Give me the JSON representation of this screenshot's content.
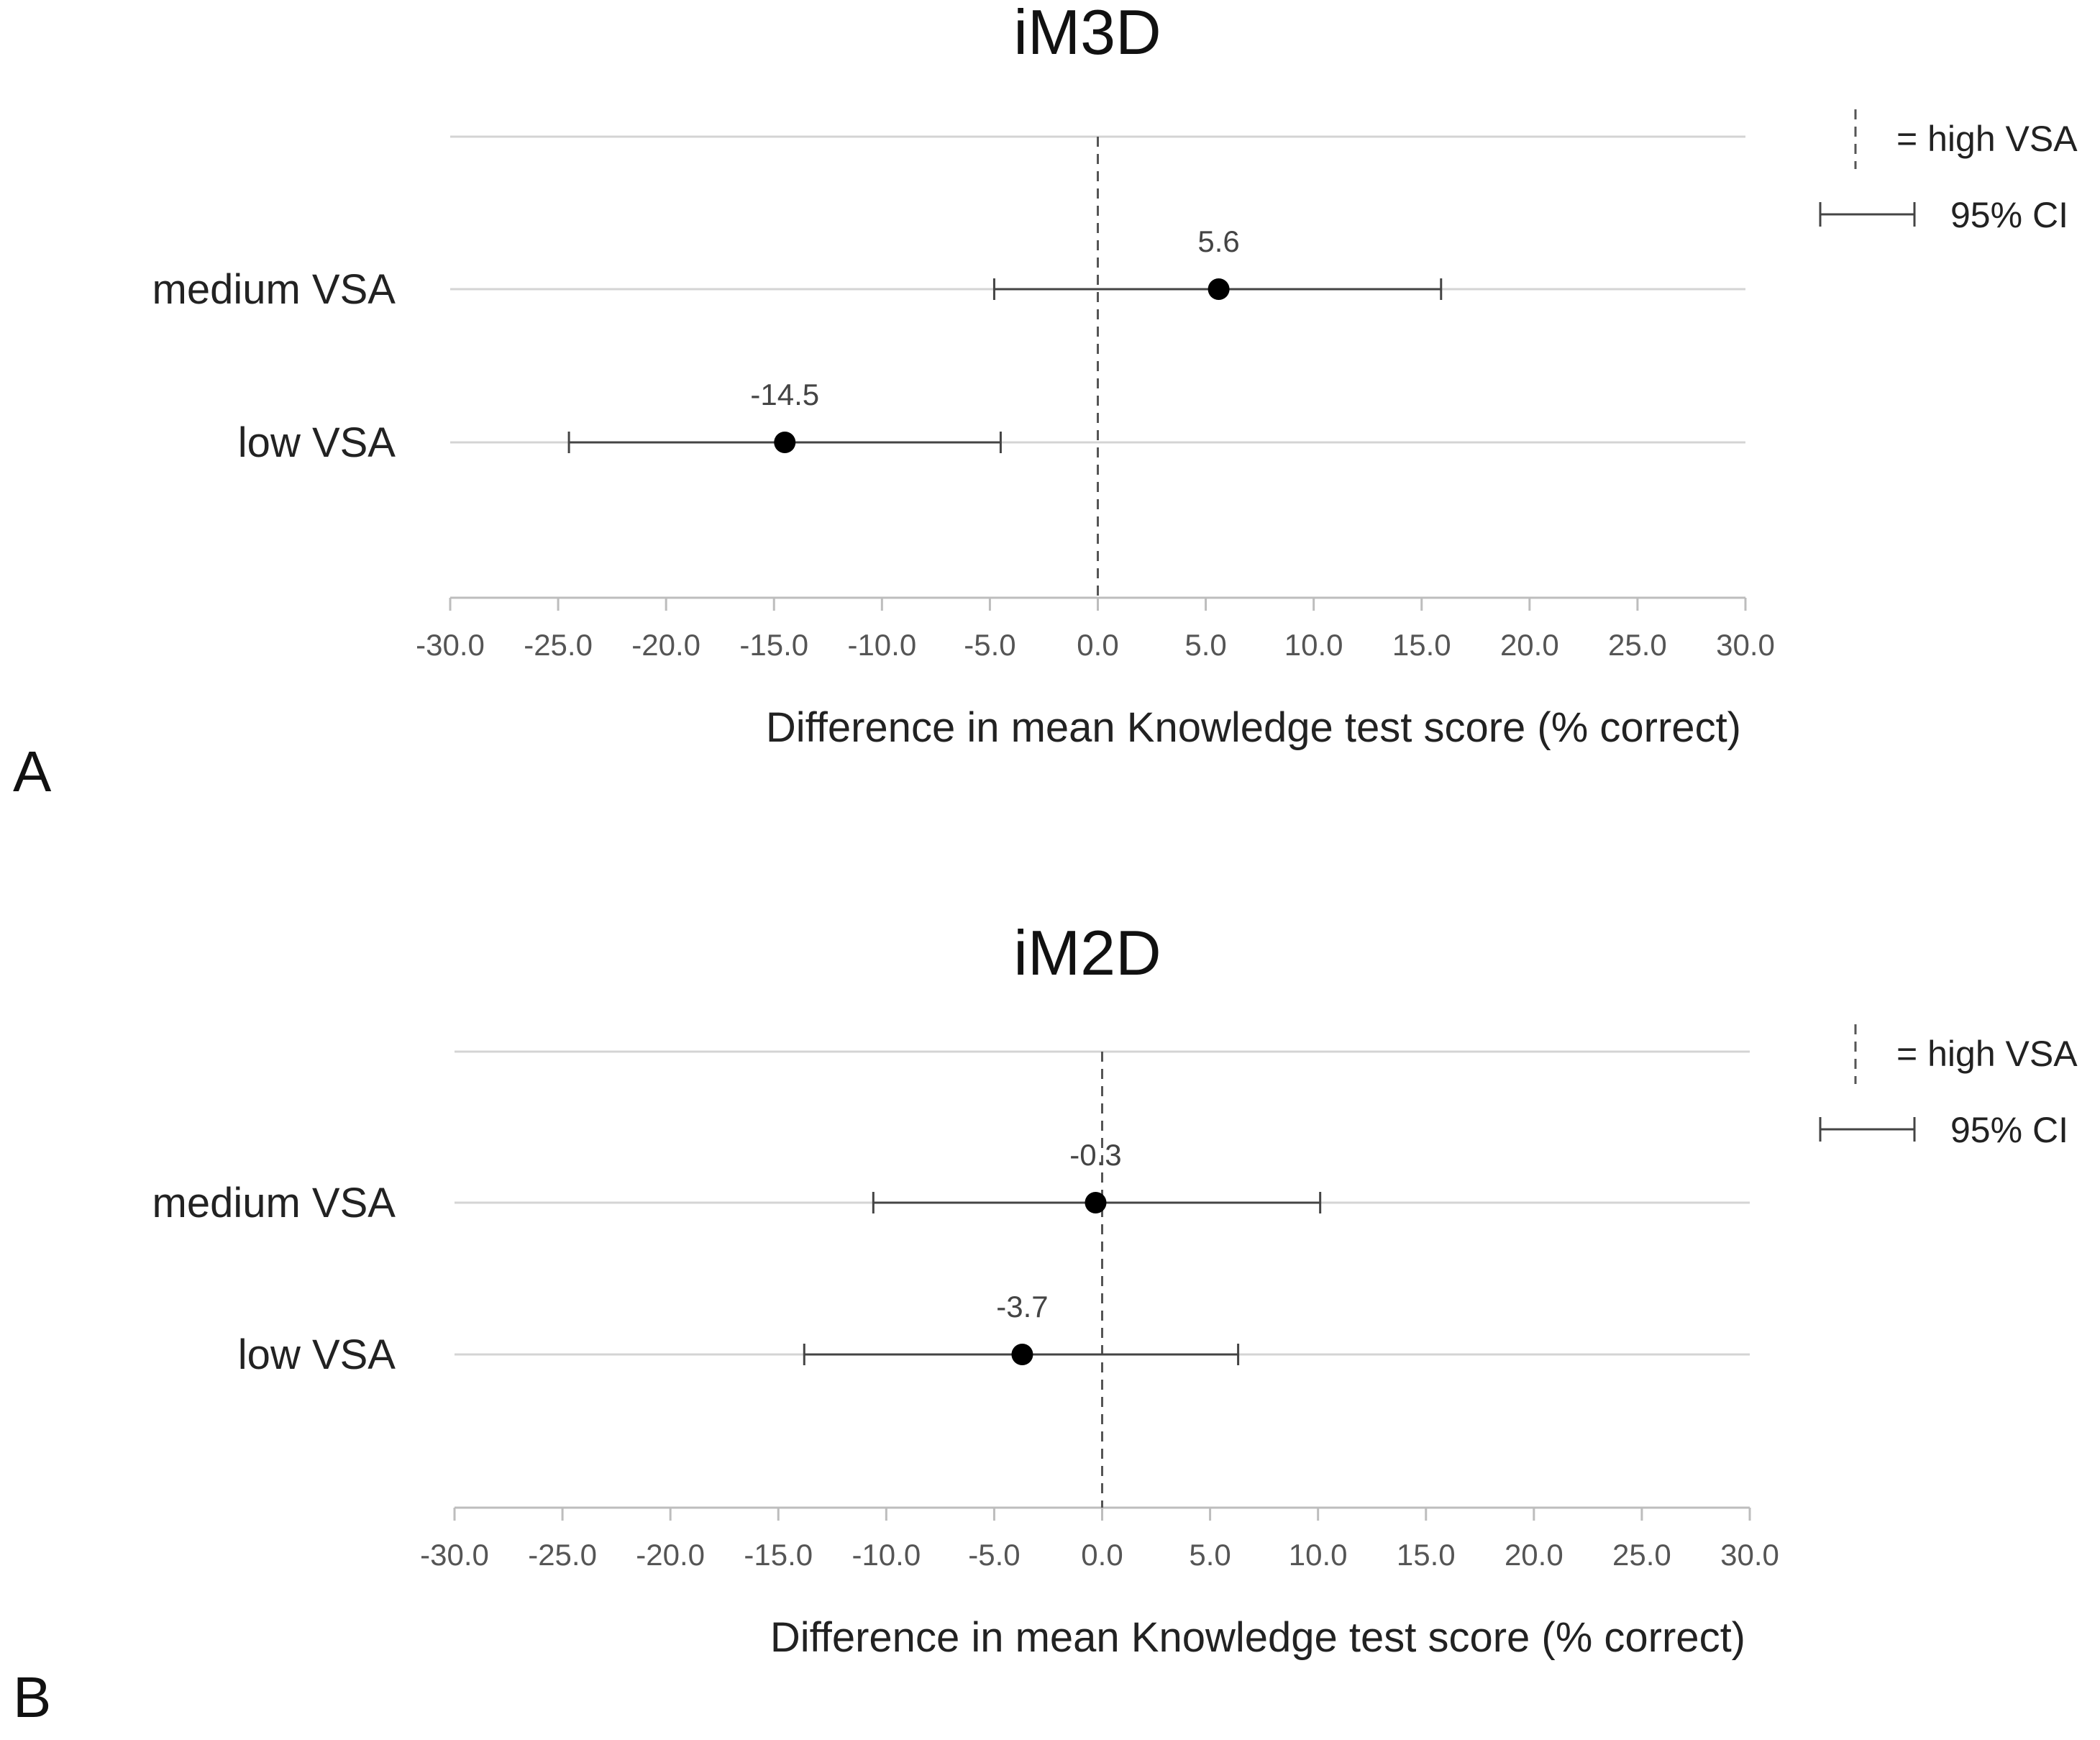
{
  "legend": {
    "reference_label": "= high VSA",
    "ci_label": "95% CI"
  },
  "chart_data": [
    {
      "type": "scatter",
      "panel": "A",
      "title": "iM3D",
      "xlabel": "Difference in mean Knowledge test score (% correct)",
      "ylabel": "",
      "xlim": [
        -30,
        30
      ],
      "xticks": [
        "-30.0",
        "-25.0",
        "-20.0",
        "-15.0",
        "-10.0",
        "-5.0",
        "0.0",
        "5.0",
        "10.0",
        "15.0",
        "20.0",
        "25.0",
        "30.0"
      ],
      "reference_line": 0,
      "reference_label": "high VSA",
      "categories": [
        "medium VSA",
        "low VSA"
      ],
      "points": [
        {
          "category": "medium VSA",
          "value": 5.6,
          "label": "5.6",
          "ci_low": -4.8,
          "ci_high": 15.9
        },
        {
          "category": "low VSA",
          "value": -14.5,
          "label": "-14.5",
          "ci_low": -24.5,
          "ci_high": -4.5
        }
      ]
    },
    {
      "type": "scatter",
      "panel": "B",
      "title": "iM2D",
      "xlabel": "Difference in mean Knowledge test score (% correct)",
      "ylabel": "",
      "xlim": [
        -30,
        30
      ],
      "xticks": [
        "-30.0",
        "-25.0",
        "-20.0",
        "-15.0",
        "-10.0",
        "-5.0",
        "0.0",
        "5.0",
        "10.0",
        "15.0",
        "20.0",
        "25.0",
        "30.0"
      ],
      "reference_line": 0,
      "reference_label": "high VSA",
      "categories": [
        "medium VSA",
        "low VSA"
      ],
      "points": [
        {
          "category": "medium VSA",
          "value": -0.3,
          "label": "-0.3",
          "ci_low": -10.6,
          "ci_high": 10.1
        },
        {
          "category": "low VSA",
          "value": -3.7,
          "label": "-3.7",
          "ci_low": -13.8,
          "ci_high": 6.3
        }
      ]
    }
  ]
}
